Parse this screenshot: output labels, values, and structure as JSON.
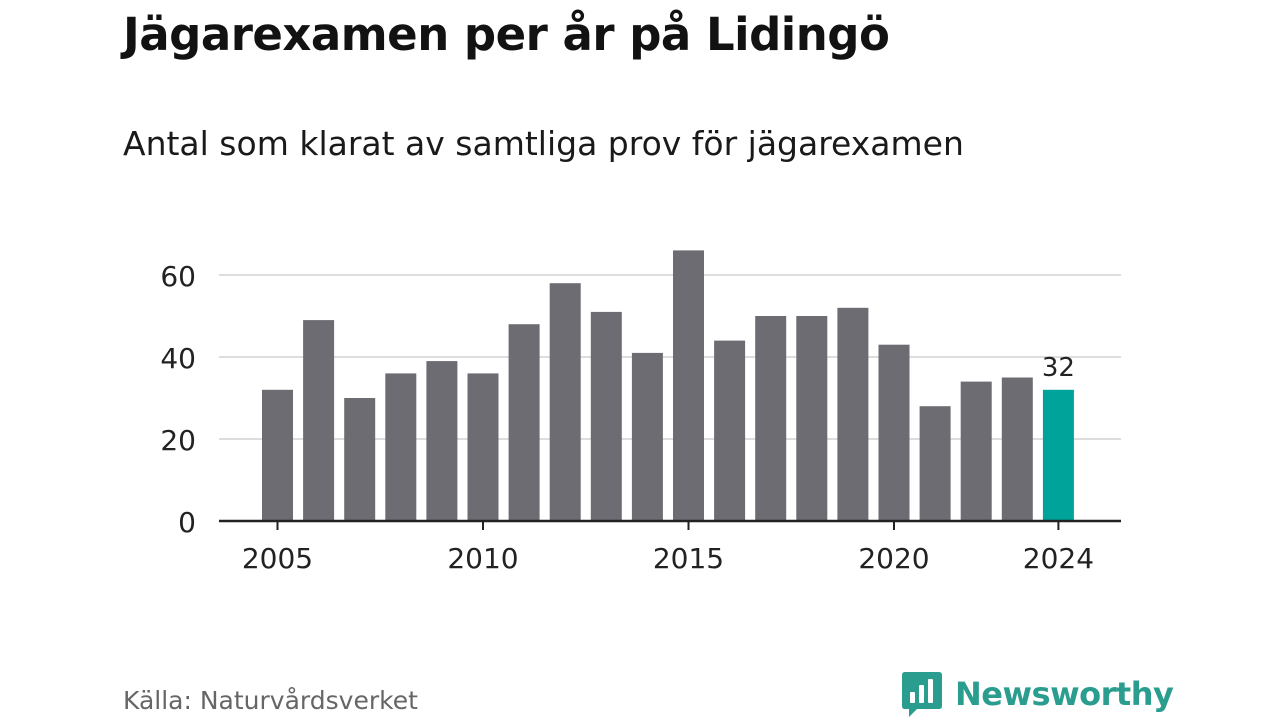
{
  "title": "Jägarexamen per år på Lidingö",
  "subtitle": "Antal som klarat av samtliga prov för jägarexamen",
  "source": "Källa: Naturvårdsverket",
  "brand": {
    "name": "Newsworthy",
    "icon": "newsworthy-logo-icon",
    "color": "#2a9d8f"
  },
  "colors": {
    "bar": "#6d6c72",
    "highlight": "#00a39a",
    "grid": "#dddddd",
    "axis": "#222222"
  },
  "chart_data": {
    "type": "bar",
    "x": [
      2005,
      2006,
      2007,
      2008,
      2009,
      2010,
      2011,
      2012,
      2013,
      2014,
      2015,
      2016,
      2017,
      2018,
      2019,
      2020,
      2021,
      2022,
      2023,
      2024
    ],
    "values": [
      32,
      49,
      30,
      36,
      39,
      36,
      48,
      58,
      51,
      41,
      66,
      44,
      50,
      50,
      52,
      43,
      28,
      34,
      35,
      32
    ],
    "highlight_year": 2024,
    "highlight_label": "32",
    "ylim": [
      0,
      70
    ],
    "yticks": [
      0,
      20,
      40,
      60
    ],
    "xticks": [
      2005,
      2010,
      2015,
      2020,
      2024
    ],
    "grid": true,
    "legend": "none"
  }
}
